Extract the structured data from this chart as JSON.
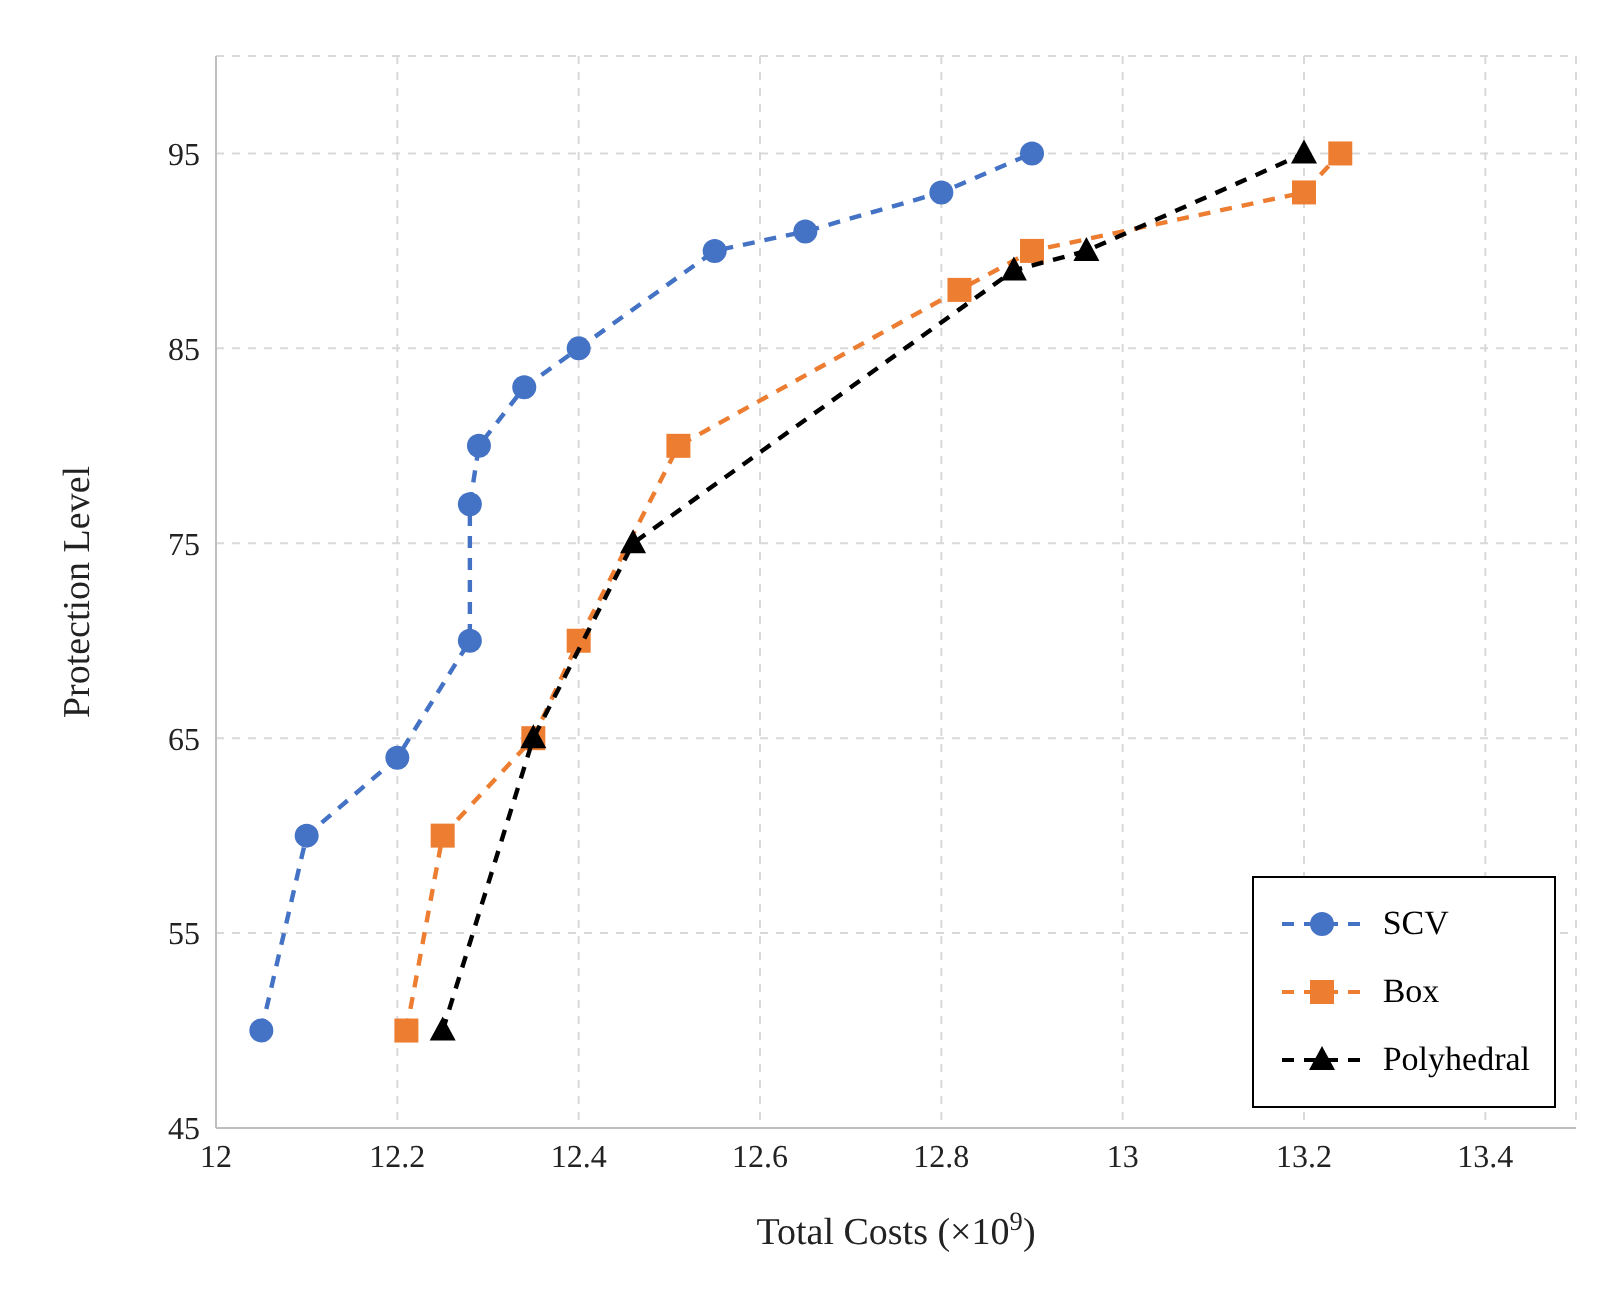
{
  "chart_data": {
    "type": "line",
    "xlabel": "Total Costs (×10$^{9}$)",
    "ylabel": "Protection Level",
    "xlim": [
      12,
      13.5
    ],
    "xticks": [
      12,
      12.2,
      12.4,
      12.6,
      12.8,
      13,
      13.2,
      13.4
    ],
    "ylim": [
      45,
      100
    ],
    "yticks": [
      45,
      55,
      65,
      75,
      85,
      95
    ],
    "grid": true,
    "legend": "bottom right",
    "line_style": "dashed",
    "series": [
      {
        "name": "SCV",
        "color": "#4472c4",
        "marker": "circle",
        "x": [
          12.05,
          12.1,
          12.2,
          12.28,
          12.28,
          12.29,
          12.34,
          12.4,
          12.55,
          12.65,
          12.8,
          12.9
        ],
        "values": [
          50,
          60,
          64,
          70,
          77,
          80,
          83,
          85,
          90,
          91,
          93,
          95
        ]
      },
      {
        "name": "Box",
        "color": "#ed7d31",
        "marker": "square",
        "x": [
          12.21,
          12.25,
          12.35,
          12.4,
          12.51,
          12.82,
          12.9,
          13.2,
          13.24
        ],
        "values": [
          50,
          60,
          65,
          70,
          80,
          88,
          90,
          93,
          95
        ]
      },
      {
        "name": "Polyhedral",
        "color": "#000000",
        "marker": "triangle",
        "x": [
          12.25,
          12.35,
          12.46,
          12.88,
          12.96,
          13.2
        ],
        "values": [
          50,
          65,
          75,
          89,
          90,
          95
        ]
      }
    ]
  }
}
